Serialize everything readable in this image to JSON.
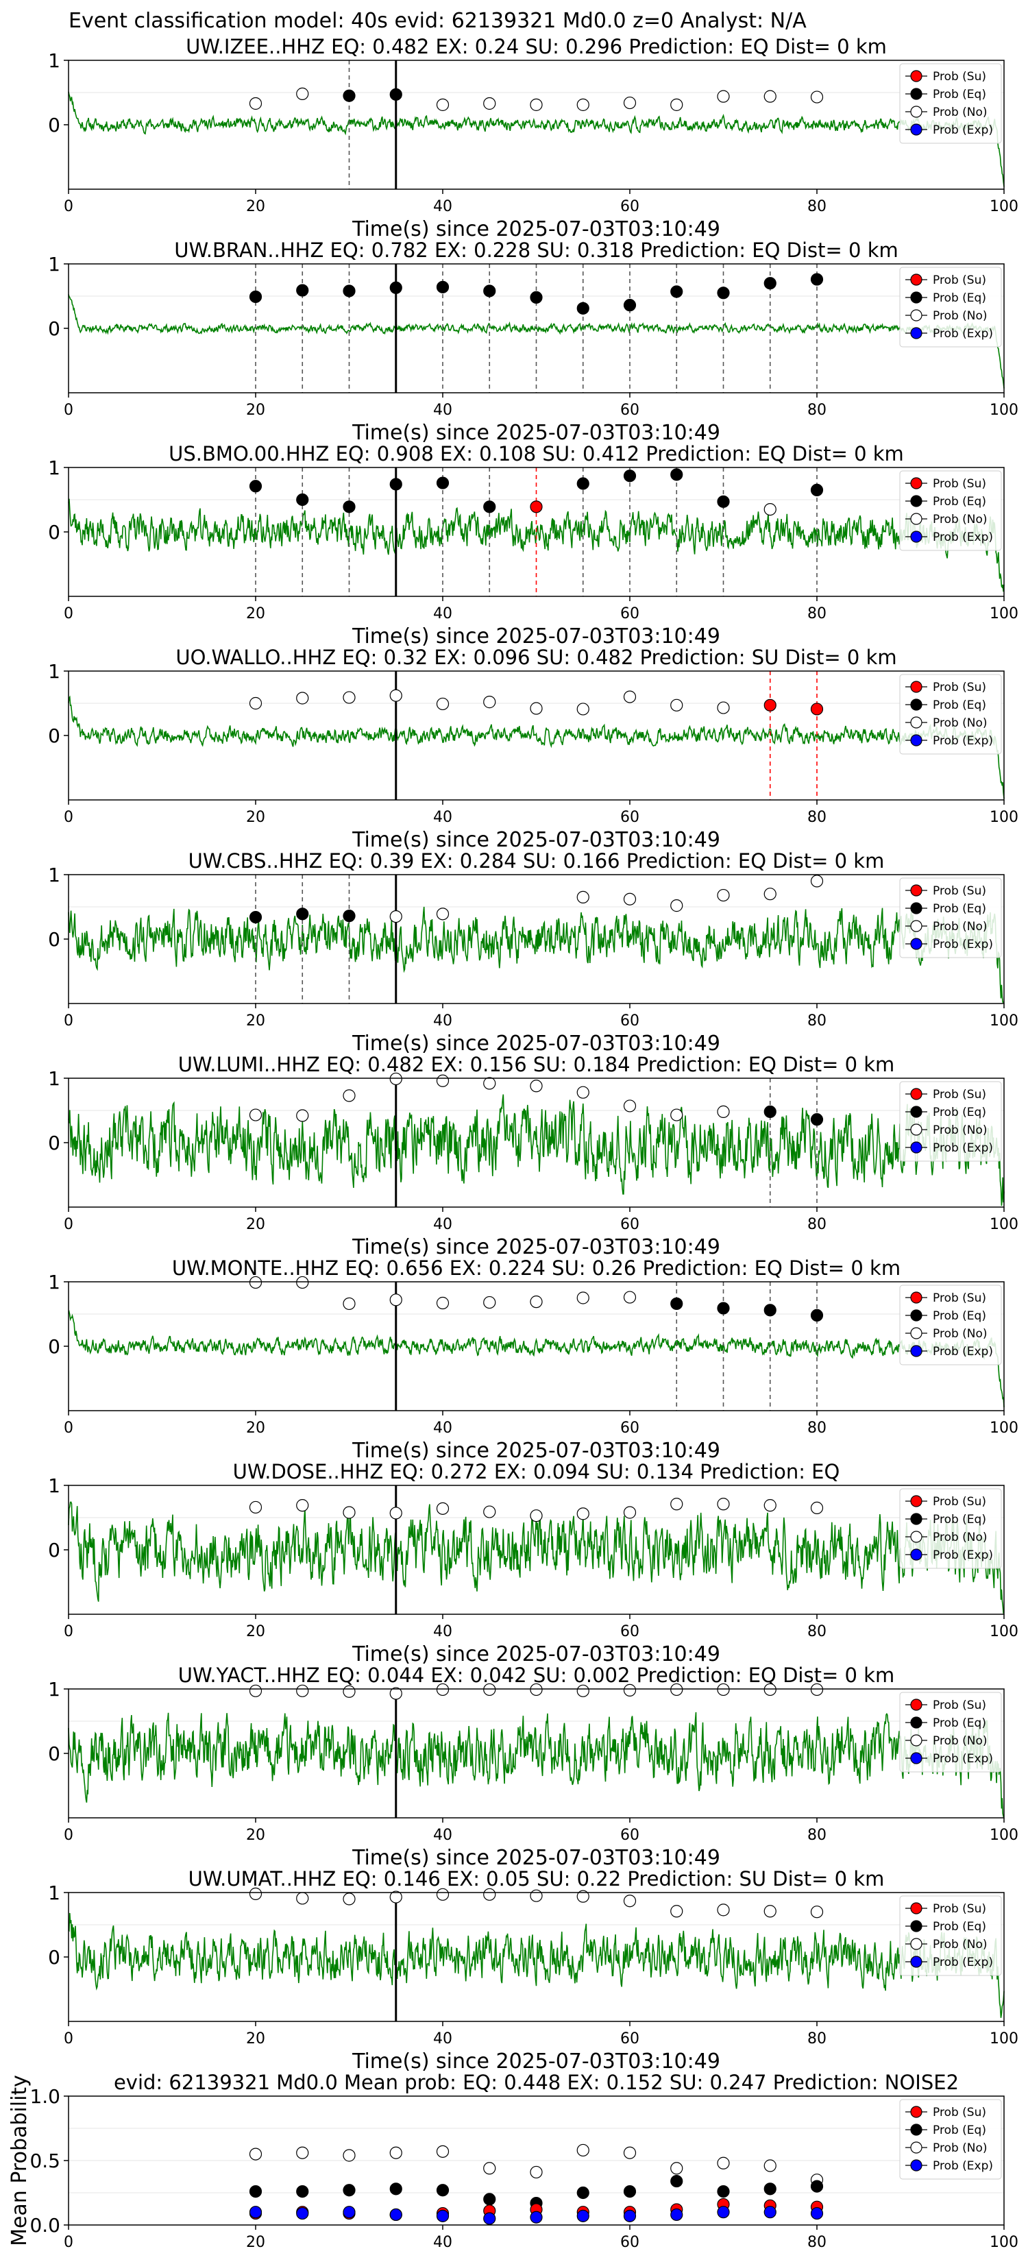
{
  "figure": {
    "suptitle": "Event classification model: 40s evid: 62139321 Md0.0 z=0 Analyst: N/A",
    "xlabel": "Time(s) since 2025-07-03T03:10:49"
  },
  "colors": {
    "trace": "#008000",
    "su": "#ff0000",
    "eq": "#000000",
    "no": "#ffffff",
    "exp": "#0000ff",
    "sta_line": "#000000",
    "eq_vline": "#555555",
    "su_vline": "#ff0000",
    "grid": "#e6e6e6"
  },
  "legend": {
    "placement": "top-right",
    "entries": [
      "Prob (Su)",
      "Prob (Eq)",
      "Prob (No)",
      "Prob (Exp)"
    ]
  },
  "chart_data": [
    {
      "type": "line",
      "title": "UW.IZEE..HHZ   EQ: 0.482  EX: 0.24  SU: 0.296   Prediction: EQ    Dist= 0 km",
      "xlabel": "Time(s) since 2025-07-03T03:10:49",
      "xlim": [
        0,
        100
      ],
      "ylim": [
        -1,
        1
      ],
      "xticks": [
        0,
        20,
        40,
        60,
        80,
        100
      ],
      "yticks": [
        0,
        1
      ],
      "station_time": 35,
      "noise_amp": 0.08,
      "seed": 11,
      "windows": [
        20,
        25,
        30,
        35,
        40,
        45,
        50,
        55,
        60,
        65,
        70,
        75,
        80
      ],
      "win_class": [
        "no",
        "no",
        "eq",
        "eq",
        "no",
        "no",
        "no",
        "no",
        "no",
        "no",
        "no",
        "no",
        "no"
      ],
      "probs": [
        0.33,
        0.48,
        0.45,
        0.47,
        0.31,
        0.33,
        0.31,
        0.31,
        0.34,
        0.31,
        0.44,
        0.44,
        0.43
      ]
    },
    {
      "type": "line",
      "title": "UW.BRAN..HHZ   EQ: 0.782  EX: 0.228  SU: 0.318   Prediction: EQ    Dist= 0 km",
      "xlabel": "Time(s) since 2025-07-03T03:10:49",
      "xlim": [
        0,
        100
      ],
      "ylim": [
        -1,
        1
      ],
      "xticks": [
        0,
        20,
        40,
        60,
        80,
        100
      ],
      "yticks": [
        0,
        1
      ],
      "station_time": 35,
      "noise_amp": 0.05,
      "seed": 23,
      "windows": [
        20,
        25,
        30,
        35,
        40,
        45,
        50,
        55,
        60,
        65,
        70,
        75,
        80
      ],
      "win_class": [
        "eq",
        "eq",
        "eq",
        "eq",
        "eq",
        "eq",
        "eq",
        "eq",
        "eq",
        "eq",
        "eq",
        "eq",
        "eq"
      ],
      "probs": [
        0.49,
        0.59,
        0.58,
        0.63,
        0.64,
        0.58,
        0.48,
        0.31,
        0.36,
        0.57,
        0.55,
        0.7,
        0.76
      ]
    },
    {
      "type": "line",
      "title": "US.BMO.00.HHZ   EQ: 0.908  EX: 0.108  SU: 0.412   Prediction: EQ    Dist= 0 km",
      "xlabel": "Time(s) since 2025-07-03T03:10:49",
      "xlim": [
        0,
        100
      ],
      "ylim": [
        -1,
        1
      ],
      "xticks": [
        0,
        20,
        40,
        60,
        80,
        100
      ],
      "yticks": [
        0,
        1
      ],
      "station_time": 35,
      "noise_amp": 0.22,
      "seed": 37,
      "windows": [
        20,
        25,
        30,
        35,
        40,
        45,
        50,
        55,
        60,
        65,
        70,
        75,
        80
      ],
      "win_class": [
        "eq",
        "eq",
        "eq",
        "eq",
        "eq",
        "eq",
        "su",
        "eq",
        "eq",
        "eq",
        "eq",
        "no",
        "eq"
      ],
      "probs": [
        0.71,
        0.5,
        0.39,
        0.74,
        0.76,
        0.39,
        0.39,
        0.75,
        0.87,
        0.89,
        0.47,
        0.35,
        0.65
      ]
    },
    {
      "type": "line",
      "title": "UO.WALLO..HHZ   EQ: 0.32  EX: 0.096  SU: 0.482   Prediction: SU    Dist= 0 km",
      "xlabel": "Time(s) since 2025-07-03T03:10:49",
      "xlim": [
        0,
        100
      ],
      "ylim": [
        -1,
        1
      ],
      "xticks": [
        0,
        20,
        40,
        60,
        80,
        100
      ],
      "yticks": [
        0,
        1
      ],
      "station_time": 35,
      "noise_amp": 0.1,
      "seed": 41,
      "windows": [
        20,
        25,
        30,
        35,
        40,
        45,
        50,
        55,
        60,
        65,
        70,
        75,
        80
      ],
      "win_class": [
        "no",
        "no",
        "no",
        "no",
        "no",
        "no",
        "no",
        "no",
        "no",
        "no",
        "no",
        "su",
        "su"
      ],
      "probs": [
        0.5,
        0.58,
        0.59,
        0.62,
        0.49,
        0.52,
        0.42,
        0.41,
        0.6,
        0.47,
        0.43,
        0.47,
        0.41
      ]
    },
    {
      "type": "line",
      "title": "UW.CBS..HHZ   EQ: 0.39  EX: 0.284  SU: 0.166   Prediction: EQ    Dist= 0 km",
      "xlabel": "Time(s) since 2025-07-03T03:10:49",
      "xlim": [
        0,
        100
      ],
      "ylim": [
        -1,
        1
      ],
      "xticks": [
        0,
        20,
        40,
        60,
        80,
        100
      ],
      "yticks": [
        0,
        1
      ],
      "station_time": 35,
      "noise_amp": 0.3,
      "seed": 53,
      "windows": [
        20,
        25,
        30,
        35,
        40,
        55,
        60,
        65,
        70,
        75,
        80
      ],
      "win_class": [
        "eq",
        "eq",
        "eq",
        "no",
        "no",
        "no",
        "no",
        "no",
        "no",
        "no",
        "no"
      ],
      "probs": [
        0.34,
        0.39,
        0.36,
        0.35,
        0.39,
        0.65,
        0.62,
        0.52,
        0.68,
        0.7,
        0.9
      ]
    },
    {
      "type": "line",
      "title": "UW.LUMI..HHZ   EQ: 0.482  EX: 0.156  SU: 0.184   Prediction: EQ    Dist= 0 km",
      "xlabel": "Time(s) since 2025-07-03T03:10:49",
      "xlim": [
        0,
        100
      ],
      "ylim": [
        -1,
        1
      ],
      "xticks": [
        0,
        20,
        40,
        60,
        80,
        100
      ],
      "yticks": [
        0,
        1
      ],
      "station_time": 35,
      "noise_amp": 0.42,
      "seed": 67,
      "windows": [
        20,
        25,
        30,
        35,
        40,
        45,
        50,
        55,
        60,
        65,
        70,
        75,
        80
      ],
      "win_class": [
        "no",
        "no",
        "no",
        "no",
        "no",
        "no",
        "no",
        "no",
        "no",
        "no",
        "no",
        "eq",
        "eq"
      ],
      "probs": [
        0.43,
        0.42,
        0.73,
        0.99,
        0.96,
        0.92,
        0.88,
        0.78,
        0.57,
        0.43,
        0.48,
        0.48,
        0.36
      ]
    },
    {
      "type": "line",
      "title": "UW.MONTE..HHZ   EQ: 0.656  EX: 0.224  SU: 0.26   Prediction: EQ    Dist= 0 km",
      "xlabel": "Time(s) since 2025-07-03T03:10:49",
      "xlim": [
        0,
        100
      ],
      "ylim": [
        -1,
        1
      ],
      "xticks": [
        0,
        20,
        40,
        60,
        80,
        100
      ],
      "yticks": [
        0,
        1
      ],
      "station_time": 35,
      "noise_amp": 0.1,
      "seed": 71,
      "windows": [
        20,
        25,
        30,
        35,
        40,
        45,
        50,
        55,
        60,
        65,
        70,
        75,
        80
      ],
      "win_class": [
        "no",
        "no",
        "no",
        "no",
        "no",
        "no",
        "no",
        "no",
        "no",
        "eq",
        "eq",
        "eq",
        "eq"
      ],
      "probs": [
        0.99,
        0.99,
        0.66,
        0.72,
        0.67,
        0.68,
        0.69,
        0.75,
        0.76,
        0.66,
        0.59,
        0.56,
        0.48
      ]
    },
    {
      "type": "line",
      "title": "UW.DOSE..HHZ   EQ: 0.272  EX: 0.094  SU: 0.134   Prediction: EQ",
      "xlabel": "Time(s) since 2025-07-03T03:10:49",
      "xlim": [
        0,
        100
      ],
      "ylim": [
        -1,
        1
      ],
      "xticks": [
        0,
        20,
        40,
        60,
        80,
        100
      ],
      "yticks": [
        0,
        1
      ],
      "station_time": 35,
      "noise_amp": 0.4,
      "seed": 83,
      "windows": [
        20,
        25,
        30,
        35,
        40,
        45,
        50,
        55,
        60,
        65,
        70,
        75,
        80
      ],
      "win_class": [
        "no",
        "no",
        "no",
        "no",
        "no",
        "no",
        "no",
        "no",
        "no",
        "no",
        "no",
        "no",
        "no"
      ],
      "probs": [
        0.66,
        0.69,
        0.58,
        0.57,
        0.64,
        0.59,
        0.53,
        0.56,
        0.58,
        0.71,
        0.71,
        0.69,
        0.65
      ]
    },
    {
      "type": "line",
      "title": "UW.YACT..HHZ   EQ: 0.044  EX: 0.042  SU: 0.002   Prediction: EQ    Dist= 0 km",
      "xlabel": "Time(s) since 2025-07-03T03:10:49",
      "xlim": [
        0,
        100
      ],
      "ylim": [
        -1,
        1
      ],
      "xticks": [
        0,
        20,
        40,
        60,
        80,
        100
      ],
      "yticks": [
        0,
        1
      ],
      "station_time": 35,
      "noise_amp": 0.38,
      "seed": 97,
      "windows": [
        20,
        25,
        30,
        35,
        40,
        45,
        50,
        55,
        60,
        65,
        70,
        75,
        80
      ],
      "win_class": [
        "no",
        "no",
        "no",
        "no",
        "no",
        "no",
        "no",
        "no",
        "no",
        "no",
        "no",
        "no",
        "no"
      ],
      "probs": [
        0.97,
        0.97,
        0.96,
        0.93,
        0.99,
        0.99,
        0.99,
        0.97,
        0.98,
        0.99,
        0.99,
        0.99,
        0.99
      ]
    },
    {
      "type": "line",
      "title": "UW.UMAT..HHZ   EQ: 0.146  EX: 0.05  SU: 0.22   Prediction: SU    Dist= 0 km",
      "xlabel": "Time(s) since 2025-07-03T03:10:49",
      "xlim": [
        0,
        100
      ],
      "ylim": [
        -1,
        1
      ],
      "xticks": [
        0,
        20,
        40,
        60,
        80,
        100
      ],
      "yticks": [
        0,
        1
      ],
      "station_time": 35,
      "noise_amp": 0.3,
      "seed": 101,
      "windows": [
        20,
        25,
        30,
        35,
        40,
        45,
        50,
        55,
        60,
        65,
        70,
        75,
        80
      ],
      "win_class": [
        "no",
        "no",
        "no",
        "no",
        "no",
        "no",
        "no",
        "no",
        "no",
        "no",
        "no",
        "no",
        "no"
      ],
      "probs": [
        0.98,
        0.91,
        0.9,
        0.93,
        0.97,
        0.97,
        0.95,
        0.94,
        0.87,
        0.71,
        0.73,
        0.71,
        0.7
      ]
    },
    {
      "type": "scatter",
      "title": "evid: 62139321  Md0.0   Mean prob:   EQ: 0.448  EX: 0.152  SU: 0.247   Prediction: NOISE2",
      "ylabel": "Mean Probability",
      "xlim": [
        0,
        100
      ],
      "ylim": [
        0,
        1
      ],
      "xticks": [
        0,
        20,
        40,
        60,
        80,
        100
      ],
      "yticks": [
        0.0,
        0.5,
        1.0
      ],
      "x": [
        20,
        25,
        30,
        35,
        40,
        45,
        50,
        55,
        60,
        65,
        70,
        75,
        80
      ],
      "series": [
        {
          "name": "Prob (Su)",
          "values": [
            0.09,
            0.1,
            0.09,
            0.08,
            0.09,
            0.11,
            0.12,
            0.1,
            0.1,
            0.12,
            0.16,
            0.15,
            0.14
          ]
        },
        {
          "name": "Prob (Eq)",
          "values": [
            0.26,
            0.26,
            0.27,
            0.28,
            0.27,
            0.2,
            0.17,
            0.25,
            0.26,
            0.34,
            0.26,
            0.28,
            0.3
          ]
        },
        {
          "name": "Prob (No)",
          "values": [
            0.55,
            0.56,
            0.54,
            0.56,
            0.57,
            0.44,
            0.41,
            0.58,
            0.56,
            0.44,
            0.48,
            0.46,
            0.35
          ]
        },
        {
          "name": "Prob (Exp)",
          "values": [
            0.1,
            0.09,
            0.1,
            0.08,
            0.07,
            0.05,
            0.06,
            0.07,
            0.07,
            0.08,
            0.1,
            0.1,
            0.09
          ]
        }
      ]
    }
  ]
}
